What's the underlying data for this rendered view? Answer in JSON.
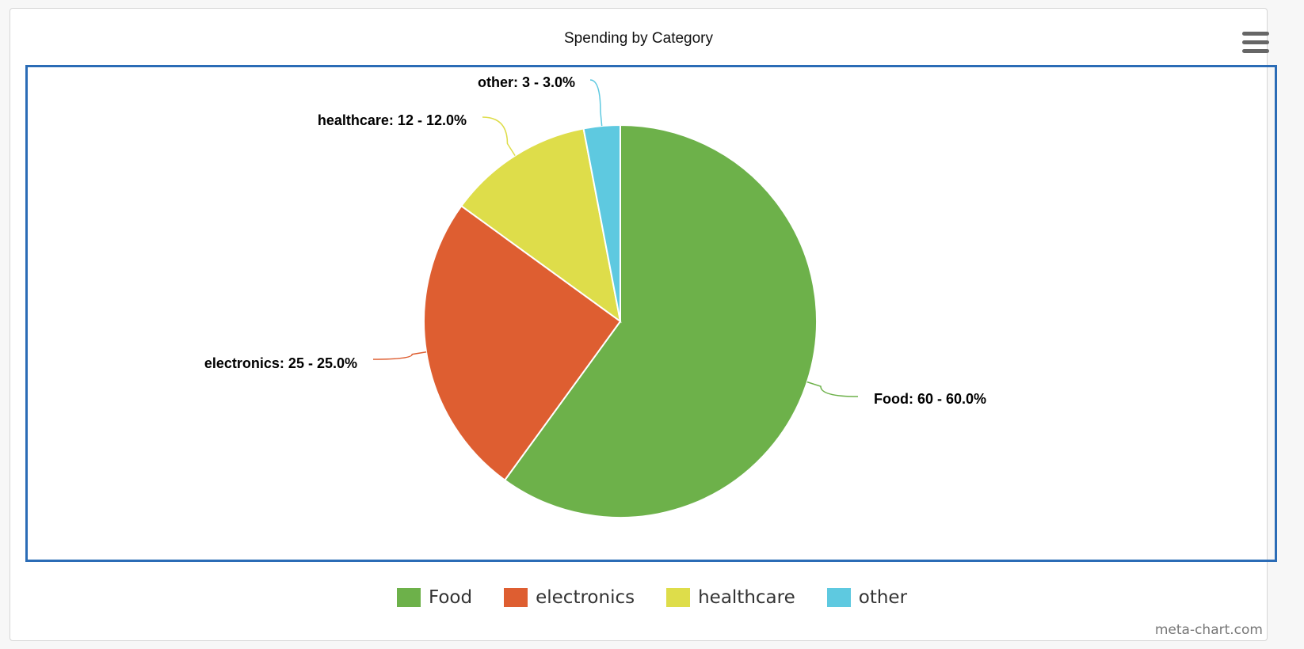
{
  "chart_data": {
    "type": "pie",
    "title": "Spending by Category",
    "categories": [
      "Food",
      "electronics",
      "healthcare",
      "other"
    ],
    "values": [
      60,
      25,
      12,
      3
    ],
    "percents": [
      "60.0%",
      "25.0%",
      "12.0%",
      "3.0%"
    ],
    "data_labels": [
      "Food: 60 - 60.0%",
      "electronics: 25 - 25.0%",
      "healthcare: 12 - 12.0%",
      "other: 3 - 3.0%"
    ],
    "colors": [
      "#6db14a",
      "#de5e31",
      "#dedd4a",
      "#5ec9e0"
    ],
    "legend_placement": "bottom-center",
    "start_angle": "top, clockwise"
  },
  "menu_icon": "hamburger-menu-icon",
  "credit": "meta-chart.com"
}
